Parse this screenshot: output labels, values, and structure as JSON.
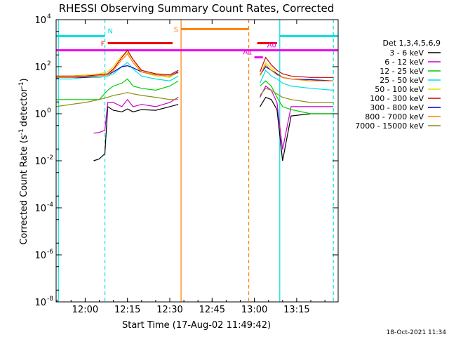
{
  "chart_data": {
    "type": "line",
    "title": "RHESSI Observing Summary Count Rates, Corrected",
    "xlabel": "Start Time (17-Aug-02 11:49:42)",
    "ylabel_main": "Corrected Count Rate (s",
    "ylabel_unit": "detector",
    "ylabel_exp": "-1",
    "ylabel_close": ")",
    "y_scale": "log",
    "ylim": [
      1e-08,
      10000.0
    ],
    "xlim": [
      "11:49:42",
      "13:29:42"
    ],
    "x_ticks": [
      "12:00",
      "12:15",
      "12:30",
      "12:45",
      "13:00",
      "13:15"
    ],
    "y_ticks": [
      {
        "base": "10",
        "exp": "-8"
      },
      {
        "base": "10",
        "exp": "-6"
      },
      {
        "base": "10",
        "exp": "-4"
      },
      {
        "base": "10",
        "exp": "-2"
      },
      {
        "base": "10",
        "exp": "0"
      },
      {
        "base": "10",
        "exp": "2"
      },
      {
        "base": "10",
        "exp": "4"
      }
    ],
    "legend_title": "Det 1,3,4,5,6,9",
    "legend_placement": "right",
    "series": [
      {
        "name": "3 - 6 keV",
        "color": "#000000",
        "x": [
          "12:03",
          "12:05",
          "12:07",
          "12:08",
          "12:10",
          "12:13",
          "12:15",
          "12:17",
          "12:20",
          "12:25",
          "12:30",
          "12:33",
          "13:02",
          "13:04",
          "13:06",
          "13:08",
          "13:10",
          "13:13",
          "13:20",
          "13:28"
        ],
        "values": [
          0.01,
          0.012,
          0.02,
          2.0,
          1.4,
          1.2,
          1.6,
          1.2,
          1.5,
          1.4,
          2.0,
          2.5,
          2.0,
          5.0,
          4.0,
          1.5,
          0.01,
          0.8,
          1.0,
          1.0
        ]
      },
      {
        "name": "6 - 12 keV",
        "color": "#cc00cc",
        "x": [
          "12:03",
          "12:05",
          "12:07",
          "12:08",
          "12:10",
          "12:13",
          "12:15",
          "12:17",
          "12:20",
          "12:25",
          "12:30",
          "12:33",
          "13:02",
          "13:04",
          "13:06",
          "13:08",
          "13:10",
          "13:13",
          "13:20",
          "13:28"
        ],
        "values": [
          0.15,
          0.16,
          0.2,
          3.0,
          3.0,
          2.0,
          4.0,
          2.0,
          2.5,
          2.0,
          3.0,
          5.0,
          5.0,
          15.0,
          10.0,
          3.0,
          0.03,
          2.0,
          2.0,
          2.0
        ]
      },
      {
        "name": "12 - 25 keV",
        "color": "#00cc00",
        "x": [
          "11:49:42",
          "11:55",
          "12:00",
          "12:05",
          "12:08",
          "12:10",
          "12:13",
          "12:15",
          "12:17",
          "12:20",
          "12:25",
          "12:30",
          "12:33",
          "13:02",
          "13:04",
          "13:06",
          "13:08",
          "13:10",
          "13:13",
          "13:20",
          "13:28"
        ],
        "values": [
          4.0,
          4.0,
          4.0,
          4.0,
          10.0,
          15.0,
          20.0,
          30.0,
          15.0,
          12.0,
          10.0,
          15.0,
          25.0,
          15.0,
          25.0,
          15.0,
          5.0,
          2.0,
          1.5,
          1.0,
          1.0
        ]
      },
      {
        "name": "25 - 50 keV",
        "color": "#00e0e0",
        "x": [
          "11:49:42",
          "11:55",
          "12:00",
          "12:05",
          "12:08",
          "12:10",
          "12:13",
          "12:15",
          "12:17",
          "12:20",
          "12:25",
          "12:30",
          "12:33",
          "13:02",
          "13:04",
          "13:06",
          "13:08",
          "13:10",
          "13:13",
          "13:20",
          "13:28"
        ],
        "values": [
          30.0,
          30.0,
          35.0,
          35.0,
          40.0,
          50.0,
          100.0,
          150.0,
          80.0,
          40.0,
          30.0,
          25.0,
          40.0,
          20.0,
          70.0,
          40.0,
          30.0,
          20.0,
          15.0,
          12.0,
          10.0
        ]
      },
      {
        "name": "50 - 100 keV",
        "color": "#e0e000",
        "x": [
          "11:49:42",
          "11:55",
          "12:00",
          "12:05",
          "12:08",
          "12:10",
          "12:13",
          "12:15",
          "12:17",
          "12:20",
          "12:25",
          "12:30",
          "12:33",
          "13:02",
          "13:04",
          "13:06",
          "13:08",
          "13:10",
          "13:13",
          "13:20",
          "13:28"
        ],
        "values": [
          40.0,
          40.0,
          45.0,
          50.0,
          60.0,
          100.0,
          300.0,
          400.0,
          200.0,
          60.0,
          40.0,
          35.0,
          60.0,
          40.0,
          150.0,
          90.0,
          50.0,
          35.0,
          30.0,
          25.0,
          25.0
        ]
      },
      {
        "name": "100 - 300 keV",
        "color": "#cc0000",
        "x": [
          "11:49:42",
          "11:55",
          "12:00",
          "12:05",
          "12:08",
          "12:10",
          "12:13",
          "12:15",
          "12:17",
          "12:20",
          "12:25",
          "12:30",
          "12:33",
          "13:02",
          "13:04",
          "13:06",
          "13:08",
          "13:10",
          "13:13",
          "13:20",
          "13:28"
        ],
        "values": [
          40.0,
          40.0,
          40.0,
          45.0,
          50.0,
          80.0,
          250.0,
          500.0,
          200.0,
          70.0,
          50.0,
          45.0,
          70.0,
          60.0,
          250.0,
          120.0,
          70.0,
          50.0,
          40.0,
          35.0,
          35.0
        ]
      },
      {
        "name": "300 - 800 keV",
        "color": "#0000cc",
        "x": [
          "11:49:42",
          "11:55",
          "12:00",
          "12:05",
          "12:08",
          "12:10",
          "12:13",
          "12:15",
          "12:17",
          "12:20",
          "12:25",
          "12:30",
          "12:33",
          "13:02",
          "13:04",
          "13:06",
          "13:08",
          "13:10",
          "13:13",
          "13:20",
          "13:28"
        ],
        "values": [
          35.0,
          35.0,
          35.0,
          40.0,
          45.0,
          60.0,
          100.0,
          110.0,
          90.0,
          60.0,
          45.0,
          40.0,
          60.0,
          45.0,
          100.0,
          70.0,
          50.0,
          35.0,
          30.0,
          28.0,
          25.0
        ]
      },
      {
        "name": "800 - 7000 keV",
        "color": "#ff8000",
        "x": [
          "11:49:42",
          "11:55",
          "12:00",
          "12:05",
          "12:08",
          "12:10",
          "12:13",
          "12:15",
          "12:17",
          "12:20",
          "12:25",
          "12:30",
          "12:33",
          "13:02",
          "13:04",
          "13:06",
          "13:08",
          "13:10",
          "13:13",
          "13:20",
          "13:28"
        ],
        "values": [
          35.0,
          35.0,
          38.0,
          40.0,
          45.0,
          70.0,
          200.0,
          350.0,
          150.0,
          60.0,
          45.0,
          40.0,
          55.0,
          45.0,
          120.0,
          70.0,
          45.0,
          35.0,
          30.0,
          25.0,
          25.0
        ]
      },
      {
        "name": "7000 - 15000 keV",
        "color": "#8c8c14",
        "x": [
          "11:49:42",
          "11:55",
          "12:00",
          "12:05",
          "12:08",
          "12:10",
          "12:13",
          "12:15",
          "12:17",
          "12:20",
          "12:25",
          "12:30",
          "12:33",
          "13:02",
          "13:04",
          "13:06",
          "13:08",
          "13:10",
          "13:13",
          "13:20",
          "13:28"
        ],
        "values": [
          2.0,
          2.5,
          3.0,
          4.0,
          5.0,
          6.0,
          7.0,
          8.0,
          7.0,
          6.0,
          5.0,
          4.0,
          4.0,
          6.0,
          12.0,
          10.0,
          7.0,
          5.0,
          4.0,
          3.0,
          3.0
        ]
      }
    ],
    "vertical_lines": [
      {
        "x": "11:50:30",
        "color": "#00e0e0",
        "style": "solid"
      },
      {
        "x": "12:07",
        "color": "#00e0e0",
        "style": "dashed"
      },
      {
        "x": "12:34",
        "color": "#ff8000",
        "style": "solid"
      },
      {
        "x": "12:58",
        "color": "#ff8000",
        "style": "dashed"
      },
      {
        "x": "13:09",
        "color": "#00e0e0",
        "style": "solid"
      },
      {
        "x": "13:28",
        "color": "#00e0e0",
        "style": "dashed"
      }
    ],
    "flag_bars": [
      {
        "label": "N",
        "color": "#00e0e0",
        "segments": [
          [
            "11:49:42",
            "12:07"
          ],
          [
            "13:09",
            "13:29:42"
          ]
        ],
        "level": 2000
      },
      {
        "label": "F",
        "color": "#ee0000",
        "segments": [
          [
            "12:08",
            "12:31"
          ],
          [
            "13:01",
            "13:08"
          ]
        ],
        "level": 1000
      },
      {
        "label": "",
        "color": "#ee00ee",
        "segments": [
          [
            "11:49:42",
            "13:29:42"
          ]
        ],
        "level": 500
      },
      {
        "label": "S",
        "color": "#ff8000",
        "segments": [
          [
            "12:34",
            "12:58"
          ]
        ],
        "level": 4000
      },
      {
        "label": "A1",
        "color": "#ee00ee",
        "segments": [
          [
            "13:00",
            "13:03"
          ]
        ],
        "level": 250
      },
      {
        "label": "A0",
        "color": "#ee00ee",
        "segments": [],
        "level": 500
      }
    ]
  },
  "footer": {
    "date_stamp": "18-Oct-2021 11:34"
  }
}
